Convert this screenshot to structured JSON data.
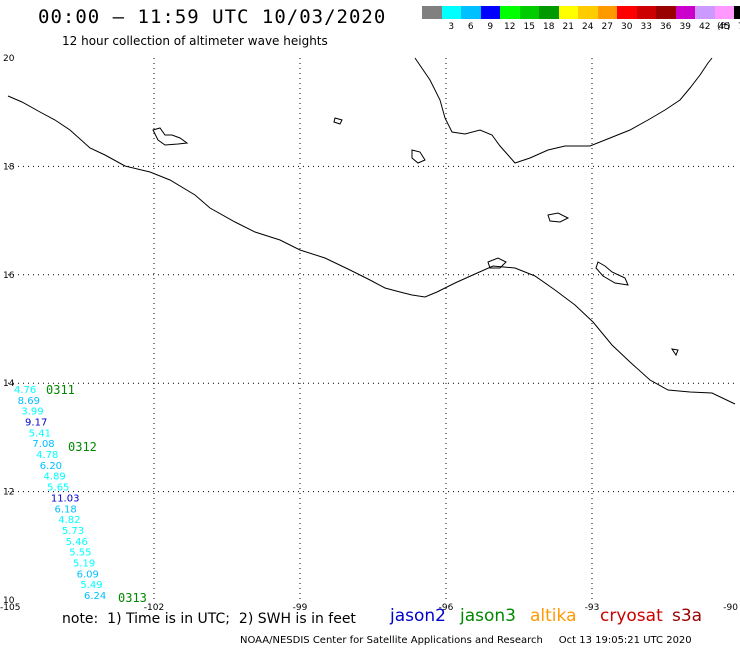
{
  "header": {
    "title": "00:00 – 11:59 UTC 10/03/2020",
    "subtitle": "12 hour collection of altimeter wave heights",
    "unit": "(ft)"
  },
  "colorbar": [
    {
      "color": "#808080",
      "label": ""
    },
    {
      "color": "#00ffff",
      "label": "3"
    },
    {
      "color": "#00c0ff",
      "label": "6"
    },
    {
      "color": "#0000ff",
      "label": "9"
    },
    {
      "color": "#00ff00",
      "label": "12"
    },
    {
      "color": "#00cc00",
      "label": "15"
    },
    {
      "color": "#009900",
      "label": "18"
    },
    {
      "color": "#ffff00",
      "label": "21"
    },
    {
      "color": "#ffcc00",
      "label": "24"
    },
    {
      "color": "#ff9900",
      "label": "27"
    },
    {
      "color": "#ff0000",
      "label": "30"
    },
    {
      "color": "#cc0000",
      "label": "33"
    },
    {
      "color": "#990000",
      "label": "36"
    },
    {
      "color": "#cc00cc",
      "label": "39"
    },
    {
      "color": "#cc99ff",
      "label": "42"
    },
    {
      "color": "#ff99ff",
      "label": "45"
    },
    {
      "color": "#000000",
      "label": "70"
    }
  ],
  "map": {
    "lat_labels": [
      "20",
      "18",
      "16",
      "14",
      "12",
      "10"
    ],
    "lon_labels": [
      "-105",
      "-102",
      "-99",
      "-96",
      "-93",
      "-90"
    ],
    "lon_range": [
      -105,
      -90
    ],
    "lat_range": [
      10,
      20
    ]
  },
  "observations": [
    {
      "value": "4.76",
      "color": "#00ffff"
    },
    {
      "value": "8.69",
      "color": "#00c0ff"
    },
    {
      "value": "3.99",
      "color": "#00ffff"
    },
    {
      "value": "9.17",
      "color": "#0000cc"
    },
    {
      "value": "5.41",
      "color": "#00ffff"
    },
    {
      "value": "7.08",
      "color": "#00c0ff"
    },
    {
      "value": "4.78",
      "color": "#00ffff"
    },
    {
      "value": "6.20",
      "color": "#00c0ff"
    },
    {
      "value": "4.89",
      "color": "#00ffff"
    },
    {
      "value": "5.65",
      "color": "#00ffff"
    },
    {
      "value": "11.03",
      "color": "#0000cc"
    },
    {
      "value": "6.18",
      "color": "#00c0ff"
    },
    {
      "value": "4.82",
      "color": "#00ffff"
    },
    {
      "value": "5.73",
      "color": "#00ffff"
    },
    {
      "value": "5.46",
      "color": "#00ffff"
    },
    {
      "value": "5.55",
      "color": "#00ffff"
    },
    {
      "value": "5.19",
      "color": "#00ffff"
    },
    {
      "value": "6.09",
      "color": "#00c0ff"
    },
    {
      "value": "5.49",
      "color": "#00ffff"
    },
    {
      "value": "6.24",
      "color": "#00c0ff"
    }
  ],
  "time_tags": [
    {
      "label": "0311",
      "color": "#008800"
    },
    {
      "label": "0312",
      "color": "#008800"
    },
    {
      "label": "0313",
      "color": "#008800"
    }
  ],
  "footer": {
    "note": "note:  1) Time is in UTC;  2) SWH is in feet",
    "satellites": [
      {
        "name": "jason2",
        "color": "#0000cc"
      },
      {
        "name": "jason3",
        "color": "#008800"
      },
      {
        "name": "altika",
        "color": "#ff9900"
      },
      {
        "name": "cryosat",
        "color": "#cc0000"
      },
      {
        "name": "s3a",
        "color": "#990000"
      }
    ],
    "credit": "NOAA/NESDIS Center for Satellite Applications and Research     Oct 13 19:05:21 UTC 2020"
  }
}
